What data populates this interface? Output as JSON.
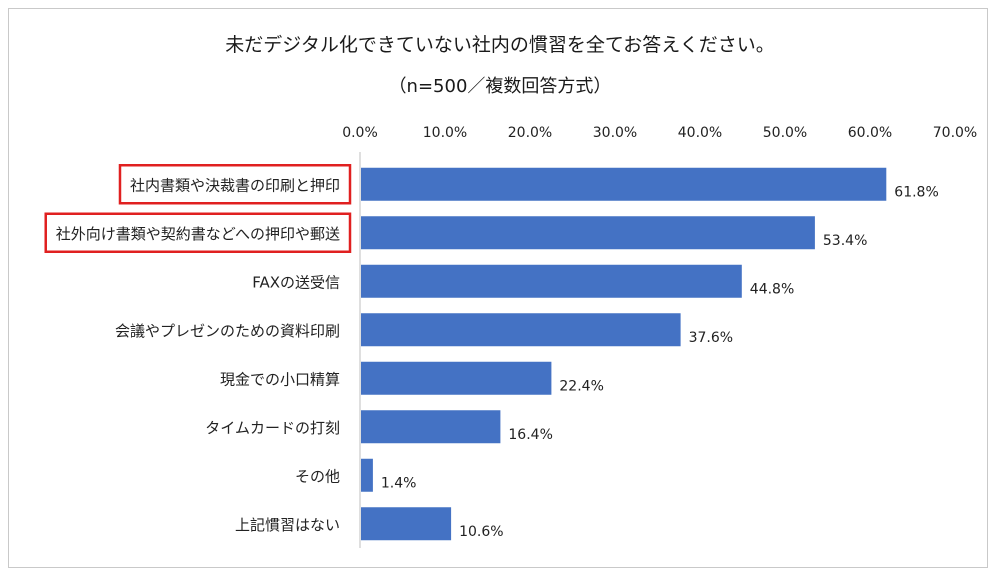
{
  "chart_data": {
    "type": "bar",
    "orientation": "horizontal",
    "title": "未だデジタル化できていない社内の慣習を全てお答えください。",
    "subtitle": "（n=500／複数回答方式）",
    "categories": [
      "社内書類や決裁書の印刷と押印",
      "社外向け書類や契約書などへの押印や郵送",
      "FAXの送受信",
      "会議やプレゼンのための資料印刷",
      "現金での小口精算",
      "タイムカードの打刻",
      "その他",
      "上記慣習はない"
    ],
    "values": [
      61.8,
      53.4,
      44.8,
      37.6,
      22.4,
      16.4,
      1.4,
      10.6
    ],
    "value_labels": [
      "61.8%",
      "53.4%",
      "44.8%",
      "37.6%",
      "22.4%",
      "16.4%",
      "1.4%",
      "10.6%"
    ],
    "xlim": [
      0,
      70
    ],
    "x_ticks": [
      "0.0%",
      "10.0%",
      "20.0%",
      "30.0%",
      "40.0%",
      "50.0%",
      "60.0%",
      "70.0%"
    ],
    "x_axis_position": "top",
    "grid": false,
    "bar_color": "#4472c4",
    "highlighted_categories": [
      0,
      1
    ],
    "highlight_color": "#e02020"
  }
}
